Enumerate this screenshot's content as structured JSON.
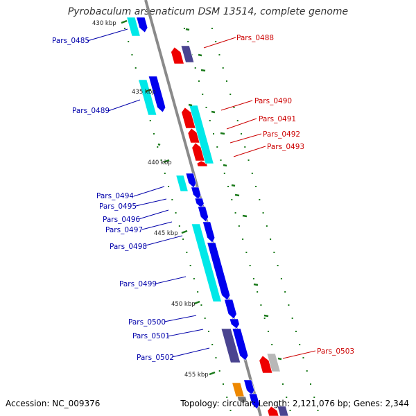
{
  "header": {
    "title": "Pyrobaculum arsenaticum DSM 13514, complete genome"
  },
  "footer": {
    "accession": "Accession: NC_009376",
    "summary": "Topology: circular; Length: 2,121,076 bp; Genes: 2,344"
  },
  "colors": {
    "backbone": "#8a8a8a",
    "forward_label": "#0000aa",
    "reverse_label": "#cc0000",
    "tick": "#1a7a1a",
    "cds_forward": "#0000ee",
    "cds_reverse": "#ee0000",
    "cyan_block": "#00e8e8",
    "slate_block": "#4a4490",
    "grey_block": "#b8b8b8",
    "orange_block": "#ee8800"
  },
  "scale": {
    "ticks": [
      "430 kbp",
      "435 kbp",
      "440 kbp",
      "445 kbp",
      "450 kbp",
      "455 kbp"
    ]
  },
  "genes": [
    {
      "label": "Pars_0485",
      "strand": "forward"
    },
    {
      "label": "Pars_0488",
      "strand": "reverse"
    },
    {
      "label": "Pars_0489",
      "strand": "forward"
    },
    {
      "label": "Pars_0490",
      "strand": "reverse"
    },
    {
      "label": "Pars_0491",
      "strand": "reverse"
    },
    {
      "label": "Pars_0492",
      "strand": "reverse"
    },
    {
      "label": "Pars_0493",
      "strand": "reverse"
    },
    {
      "label": "Pars_0494",
      "strand": "forward"
    },
    {
      "label": "Pars_0495",
      "strand": "forward"
    },
    {
      "label": "Pars_0496",
      "strand": "forward"
    },
    {
      "label": "Pars_0497",
      "strand": "forward"
    },
    {
      "label": "Pars_0498",
      "strand": "forward"
    },
    {
      "label": "Pars_0499",
      "strand": "forward"
    },
    {
      "label": "Pars_0500",
      "strand": "forward"
    },
    {
      "label": "Pars_0501",
      "strand": "forward"
    },
    {
      "label": "Pars_0502",
      "strand": "forward"
    },
    {
      "label": "Pars_0503",
      "strand": "reverse"
    }
  ]
}
